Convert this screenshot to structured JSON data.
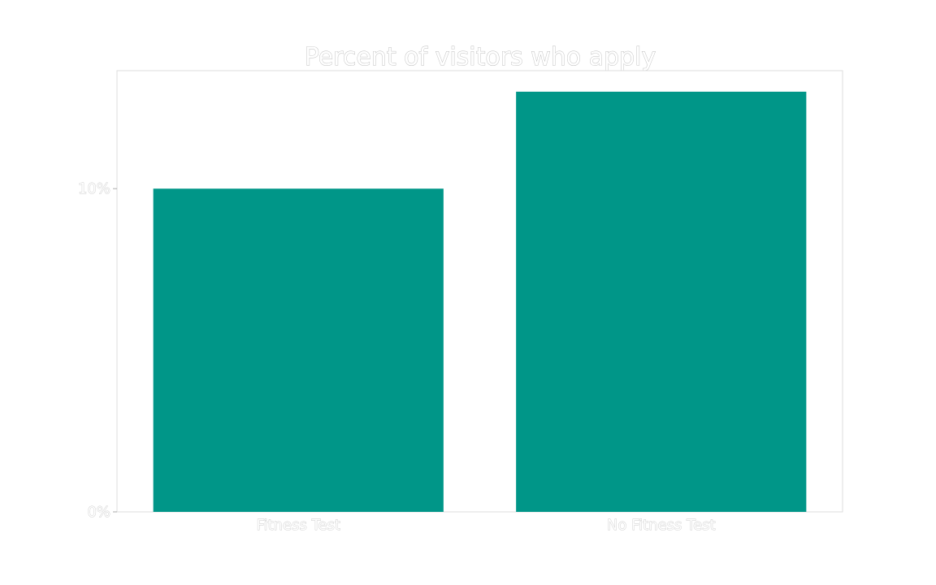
{
  "chart_data": {
    "type": "bar",
    "title": "Percent of visitors who apply",
    "categories": [
      "Fitness Test",
      "No Fitness Test"
    ],
    "values": [
      10,
      13
    ],
    "ylim": [
      0,
      13.65
    ],
    "yticks": [
      {
        "value": 0,
        "label": "0%"
      },
      {
        "value": 10,
        "label": "10%"
      }
    ],
    "xlabel": "",
    "ylabel": "",
    "grid": false,
    "bar_color": "#009688"
  }
}
